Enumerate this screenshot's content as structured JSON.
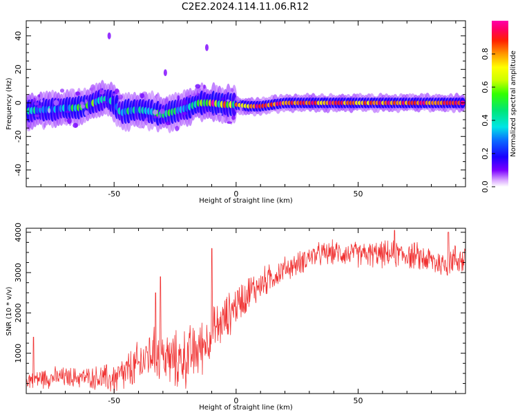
{
  "title": "C2E2.2024.114.11.06.R12",
  "chart_data": [
    {
      "type": "heatmap",
      "title": "C2E2.2024.114.11.06.R12",
      "xlabel": "Height of straight line (km)",
      "ylabel": "Frequency (Hz)",
      "xlim": [
        -86,
        94
      ],
      "ylim": [
        -50,
        49
      ],
      "x_ticks": [
        -50,
        0,
        50
      ],
      "y_ticks": [
        -40,
        -20,
        0,
        20,
        40
      ],
      "grid": false,
      "colorbar": {
        "label": "Normalized spectral amplitude",
        "range": [
          0.0,
          1.0
        ],
        "ticks": [
          0.0,
          0.2,
          0.4,
          0.6,
          0.8
        ],
        "colormap": "gist_ncar-like (violet-blue-cyan-green-yellow-red-magenta)"
      },
      "ridge": {
        "x": [
          -86,
          -80,
          -75,
          -70,
          -65,
          -60,
          -55,
          -52,
          -50,
          -47,
          -45,
          -40,
          -35,
          -30,
          -25,
          -20,
          -15,
          -10,
          -5,
          0,
          5,
          10,
          20,
          40,
          60,
          80,
          94
        ],
        "y_hz": [
          -5,
          -4,
          -4,
          -3,
          -3,
          -1,
          2,
          2,
          0,
          -6,
          -5,
          -4,
          -5,
          -7,
          -5,
          -3,
          0,
          0,
          -1,
          -1,
          -2,
          -2,
          0,
          0,
          0,
          0,
          0
        ],
        "amplitude": [
          0.35,
          0.35,
          0.4,
          0.4,
          0.4,
          0.45,
          0.4,
          0.35,
          0.3,
          0.35,
          0.35,
          0.4,
          0.4,
          0.45,
          0.4,
          0.45,
          0.6,
          0.75,
          0.8,
          0.8,
          0.8,
          0.95,
          0.8,
          0.85,
          0.85,
          0.85,
          0.85
        ]
      },
      "scatter_points": [
        {
          "x": -12,
          "y": 33
        },
        {
          "x": -29,
          "y": 18
        },
        {
          "x": -52,
          "y": 40
        }
      ]
    },
    {
      "type": "line",
      "xlabel": "Height of straight line (km)",
      "ylabel": "SNR (10 * v/v)",
      "xlim": [
        -86,
        94
      ],
      "ylim": [
        0,
        4100
      ],
      "x_ticks": [
        -50,
        0,
        50
      ],
      "y_ticks": [
        1000,
        2000,
        3000,
        4000
      ],
      "grid": false,
      "color": "#f03030",
      "trend": {
        "x": [
          -86,
          -75,
          -60,
          -50,
          -45,
          -40,
          -35,
          -30,
          -25,
          -20,
          -15,
          -10,
          -5,
          0,
          5,
          10,
          15,
          20,
          25,
          30,
          40,
          50,
          60,
          70,
          80,
          85,
          90,
          94
        ],
        "y": [
          350,
          400,
          400,
          350,
          500,
          700,
          1000,
          900,
          800,
          900,
          1100,
          1500,
          1800,
          2200,
          2500,
          2700,
          2900,
          3100,
          3200,
          3400,
          3500,
          3450,
          3450,
          3450,
          3300,
          3200,
          3350,
          3300
        ]
      },
      "noise_amplitude": {
        "x": [
          -86,
          -60,
          -40,
          -20,
          0,
          20,
          40,
          94
        ],
        "y": [
          300,
          300,
          700,
          900,
          600,
          350,
          350,
          450
        ]
      },
      "spikes": [
        {
          "x": -33,
          "y": 2500
        },
        {
          "x": -31,
          "y": 2900
        },
        {
          "x": -10,
          "y": 3600
        },
        {
          "x": -83,
          "y": 1400
        },
        {
          "x": 65,
          "y": 4050
        },
        {
          "x": 87,
          "y": 4000
        }
      ]
    }
  ]
}
